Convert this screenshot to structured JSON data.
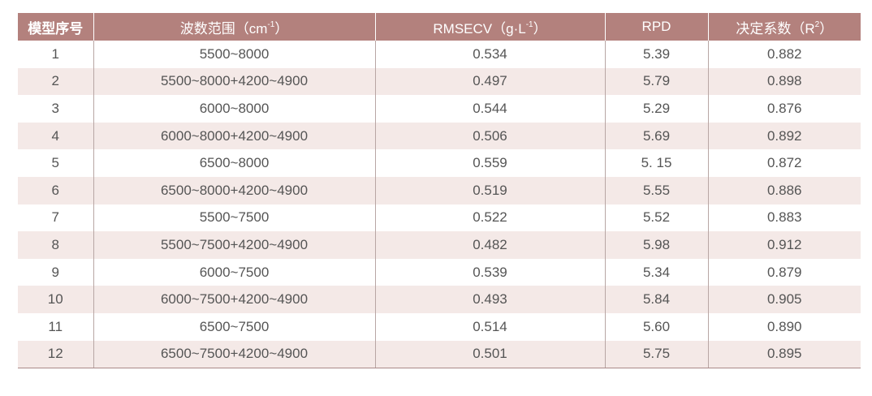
{
  "table": {
    "header": [
      {
        "text": "模型序号"
      },
      {
        "text": "波数范围（cm",
        "sup": "-1",
        "after": "）"
      },
      {
        "text": "RMSECV（g·L",
        "sup": "-1",
        "after": "）"
      },
      {
        "text": "RPD"
      },
      {
        "text": "决定系数（R",
        "sup": "2",
        "after": "）"
      }
    ],
    "rows": [
      [
        "1",
        "5500~8000",
        "0.534",
        "5.39",
        "0.882"
      ],
      [
        "2",
        "5500~8000+4200~4900",
        "0.497",
        "5.79",
        "0.898"
      ],
      [
        "3",
        "6000~8000",
        "0.544",
        "5.29",
        "0.876"
      ],
      [
        "4",
        "6000~8000+4200~4900",
        "0.506",
        "5.69",
        "0.892"
      ],
      [
        "5",
        "6500~8000",
        "0.559",
        "5. 15",
        "0.872"
      ],
      [
        "6",
        "6500~8000+4200~4900",
        "0.519",
        "5.55",
        "0.886"
      ],
      [
        "7",
        "5500~7500",
        "0.522",
        "5.52",
        "0.883"
      ],
      [
        "8",
        "5500~7500+4200~4900",
        "0.482",
        "5.98",
        "0.912"
      ],
      [
        "9",
        "6000~7500",
        "0.539",
        "5.34",
        "0.879"
      ],
      [
        "10",
        "6000~7500+4200~4900",
        "0.493",
        "5.84",
        "0.905"
      ],
      [
        "11",
        "6500~7500",
        "0.514",
        "5.60",
        "0.890"
      ],
      [
        "12",
        "6500~7500+4200~4900",
        "0.501",
        "5.75",
        "0.895"
      ]
    ]
  }
}
